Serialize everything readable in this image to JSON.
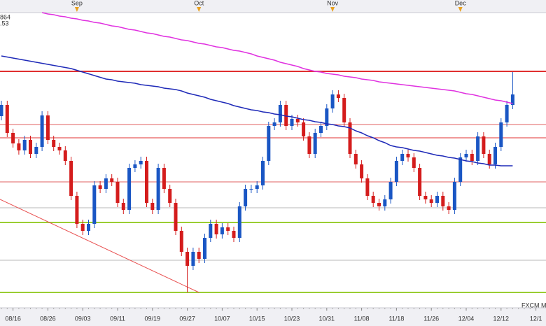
{
  "chart_data": {
    "type": "candlestick",
    "categories": [
      null,
      null,
      "08/16",
      null,
      null,
      null,
      null,
      null,
      "08/26",
      null,
      null,
      null,
      null,
      null,
      "09/03",
      null,
      null,
      null,
      null,
      null,
      "09/11",
      null,
      null,
      null,
      null,
      null,
      "09/19",
      null,
      null,
      null,
      null,
      null,
      "09/27",
      null,
      null,
      null,
      null,
      null,
      "10/07",
      null,
      null,
      null,
      null,
      null,
      "10/15",
      null,
      null,
      null,
      null,
      null,
      "10/23",
      null,
      null,
      null,
      null,
      null,
      "10/31",
      null,
      null,
      null,
      null,
      null,
      "11/08",
      null,
      null,
      null,
      null,
      null,
      "11/18",
      null,
      null,
      null,
      null,
      null,
      "11/26",
      null,
      null,
      null,
      null,
      null,
      "12/04",
      null,
      null,
      null,
      null,
      null,
      "12/12",
      null,
      null,
      null,
      null,
      null,
      "12/1"
    ],
    "month_categories": [
      null,
      null,
      null,
      null,
      null,
      null,
      null,
      null,
      null,
      null,
      null,
      null,
      null,
      "Sep",
      null,
      null,
      null,
      null,
      null,
      null,
      null,
      null,
      null,
      null,
      null,
      null,
      null,
      null,
      null,
      null,
      null,
      null,
      null,
      null,
      "Oct",
      null,
      null,
      null,
      null,
      null,
      null,
      null,
      null,
      null,
      null,
      null,
      null,
      null,
      null,
      null,
      null,
      null,
      null,
      null,
      null,
      null,
      null,
      "Nov",
      null,
      null,
      null,
      null,
      null,
      null,
      null,
      null,
      null,
      null,
      null,
      null,
      null,
      null,
      null,
      null,
      null,
      null,
      null,
      null,
      null,
      "Dec",
      null,
      null,
      null,
      null,
      null,
      null,
      null,
      null,
      null,
      null,
      null,
      null,
      null
    ],
    "open": [
      300,
      316,
      276,
      261,
      251,
      266,
      246,
      256,
      301,
      266,
      256,
      251,
      236,
      186,
      146,
      136,
      146,
      201,
      196,
      211,
      206,
      176,
      166,
      226,
      231,
      236,
      176,
      166,
      226,
      196,
      176,
      136,
      106,
      86,
      106,
      96,
      126,
      146,
      131,
      141,
      136,
      126,
      171,
      196,
      196,
      201,
      236,
      286,
      291,
      316,
      286,
      296,
      291,
      271,
      246,
      276,
      286,
      311,
      331,
      326,
      291,
      246,
      231,
      211,
      186,
      176,
      171,
      181,
      206,
      236,
      246,
      241,
      226,
      186,
      181,
      176,
      186,
      171,
      166,
      206,
      241,
      246,
      236,
      271,
      246,
      231,
      256,
      291,
      316,
      null,
      null,
      null,
      null
    ],
    "high": [
      322,
      322,
      282,
      267,
      272,
      272,
      262,
      307,
      307,
      272,
      262,
      257,
      242,
      192,
      152,
      152,
      207,
      207,
      217,
      217,
      212,
      182,
      232,
      237,
      242,
      242,
      182,
      232,
      232,
      202,
      182,
      142,
      112,
      112,
      112,
      132,
      152,
      152,
      147,
      147,
      142,
      177,
      202,
      202,
      207,
      242,
      292,
      297,
      322,
      322,
      302,
      302,
      297,
      277,
      282,
      292,
      317,
      337,
      337,
      332,
      297,
      252,
      237,
      217,
      192,
      182,
      187,
      212,
      242,
      252,
      252,
      247,
      232,
      192,
      187,
      192,
      192,
      177,
      212,
      247,
      252,
      252,
      277,
      277,
      252,
      262,
      297,
      322,
      363,
      null,
      null,
      null,
      null
    ],
    "low": [
      294,
      270,
      255,
      245,
      245,
      240,
      240,
      250,
      260,
      250,
      245,
      230,
      180,
      140,
      130,
      130,
      140,
      190,
      190,
      200,
      170,
      160,
      160,
      220,
      225,
      170,
      160,
      160,
      190,
      170,
      130,
      100,
      48,
      80,
      90,
      90,
      120,
      125,
      125,
      130,
      120,
      120,
      165,
      190,
      190,
      195,
      230,
      280,
      285,
      280,
      280,
      285,
      265,
      240,
      240,
      270,
      280,
      305,
      320,
      285,
      240,
      225,
      205,
      180,
      170,
      165,
      165,
      175,
      200,
      230,
      235,
      220,
      180,
      175,
      170,
      170,
      165,
      160,
      160,
      200,
      235,
      230,
      230,
      240,
      225,
      225,
      250,
      285,
      310,
      null,
      null,
      null,
      null
    ],
    "close": [
      316,
      276,
      261,
      251,
      266,
      246,
      256,
      301,
      266,
      256,
      251,
      236,
      186,
      146,
      136,
      146,
      201,
      196,
      211,
      206,
      176,
      166,
      226,
      231,
      236,
      176,
      166,
      226,
      196,
      176,
      136,
      106,
      86,
      106,
      96,
      126,
      146,
      131,
      141,
      136,
      126,
      171,
      196,
      196,
      201,
      236,
      286,
      291,
      316,
      286,
      296,
      291,
      271,
      246,
      276,
      286,
      311,
      331,
      326,
      291,
      246,
      231,
      211,
      186,
      176,
      171,
      181,
      206,
      236,
      246,
      241,
      226,
      186,
      181,
      176,
      186,
      171,
      166,
      206,
      241,
      246,
      236,
      271,
      246,
      231,
      256,
      291,
      316,
      331,
      null,
      null,
      null,
      null
    ],
    "up_color": "#1a56c4",
    "down_color": "#d41c1c",
    "series": [
      {
        "name": "864",
        "color": "#1f2ab8",
        "values": [
          386,
          384.5,
          383,
          381.5,
          380,
          378.5,
          377,
          375.5,
          374,
          372.5,
          371,
          369.5,
          368,
          365.5,
          363,
          360.5,
          358,
          355.5,
          353,
          352,
          350,
          349,
          348,
          347,
          345,
          344,
          343,
          342,
          340,
          339,
          338,
          336,
          333,
          331,
          329,
          327,
          324,
          322,
          320,
          318,
          315,
          313,
          311,
          309,
          308,
          306,
          305,
          303,
          302,
          300,
          299,
          297,
          295,
          294,
          292,
          291,
          289,
          288,
          286,
          285,
          283,
          279,
          276,
          272,
          269,
          265,
          262,
          258,
          256,
          255,
          253,
          251,
          250,
          248,
          246,
          244,
          243,
          241,
          240,
          238,
          236,
          235,
          233,
          232,
          230,
          230,
          229,
          229,
          229,
          null,
          null,
          null,
          null
        ]
      },
      {
        "name": ".53",
        "color": "#e032e0",
        "values": [
          null,
          null,
          null,
          null,
          null,
          null,
          null,
          448,
          446,
          445,
          443,
          442,
          440,
          439,
          437,
          436,
          434,
          433,
          431,
          429,
          428,
          426,
          424,
          423,
          421,
          419,
          418,
          416,
          414,
          413,
          411,
          409,
          408,
          406,
          404,
          403,
          401,
          399,
          398,
          396,
          394,
          393,
          391,
          389,
          386,
          384,
          382,
          380,
          377,
          375,
          373,
          371,
          368,
          366,
          364,
          363,
          361,
          360,
          359,
          357,
          356,
          355,
          353,
          352,
          351,
          349,
          348,
          347,
          346,
          345,
          344,
          343,
          342,
          341,
          340,
          339,
          338,
          337,
          336,
          334,
          332,
          331,
          329,
          327,
          325,
          323,
          322,
          320,
          318,
          null,
          null,
          null,
          null
        ]
      }
    ],
    "levels": [
      {
        "value": 364,
        "color": "#e03030",
        "weight": "bold"
      },
      {
        "value": 288,
        "color": "#e06060",
        "weight": "normal"
      },
      {
        "value": 269,
        "color": "#e03030",
        "weight": "normal"
      },
      {
        "value": 206,
        "color": "#e06060",
        "weight": "normal"
      },
      {
        "value": 169,
        "color": "#b8b8b8",
        "weight": "normal"
      },
      {
        "value": 148,
        "color": "#9acd32",
        "weight": "bold"
      },
      {
        "value": 94,
        "color": "#b8b8b8",
        "weight": "normal"
      },
      {
        "value": 48,
        "color": "#9acd32",
        "weight": "bold"
      }
    ],
    "trendline": {
      "color": "#e85050",
      "values": [
        181,
        48
      ]
    },
    "ylim": [
      0,
      466
    ],
    "source": "FXCM M"
  }
}
